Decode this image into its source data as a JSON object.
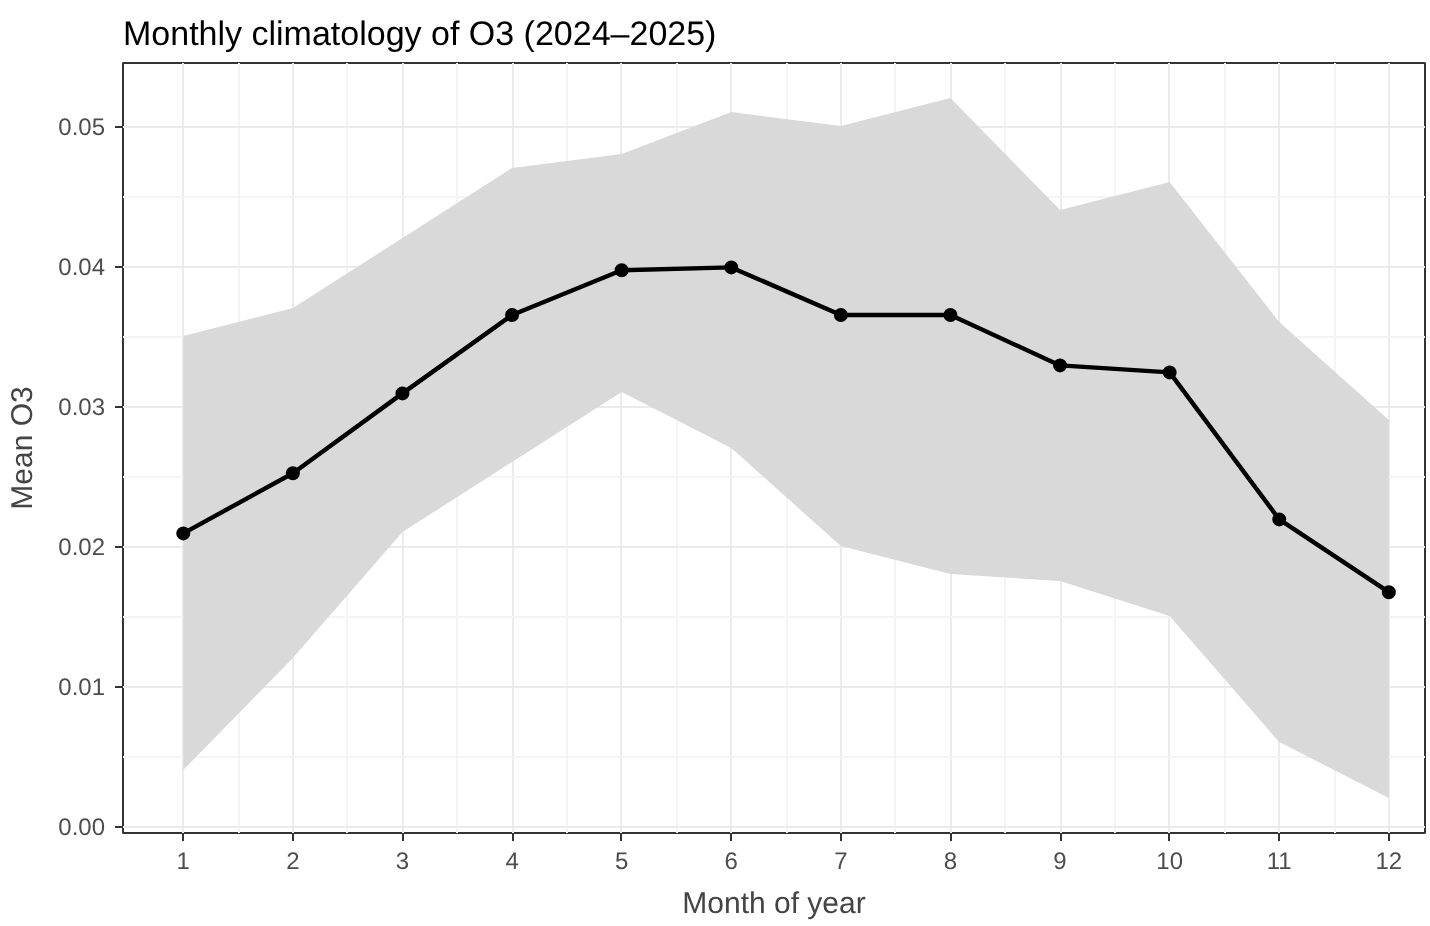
{
  "chart_data": {
    "type": "line",
    "title": "Monthly climatology of O3 (2024–2025)",
    "xlabel": "Month of year",
    "ylabel": "Mean O3",
    "x": [
      1,
      2,
      3,
      4,
      5,
      6,
      7,
      8,
      9,
      10,
      11,
      12
    ],
    "series": [
      {
        "color": "#000000",
        "values": [
          0.0209,
          0.0252,
          0.0309,
          0.0365,
          0.0397,
          0.0399,
          0.0365,
          0.0365,
          0.0329,
          0.0324,
          0.0219,
          0.0167
        ],
        "lower": [
          0.004,
          0.012,
          0.021,
          0.026,
          0.031,
          0.027,
          0.02,
          0.018,
          0.0175,
          0.015,
          0.006,
          0.002
        ],
        "upper": [
          0.035,
          0.037,
          0.042,
          0.047,
          0.048,
          0.051,
          0.05,
          0.052,
          0.044,
          0.046,
          0.036,
          0.029
        ]
      }
    ],
    "xlim": [
      0.45,
      12.33
    ],
    "ylim": [
      -0.0005,
      0.0545
    ],
    "xticks": [
      1,
      2,
      3,
      4,
      5,
      6,
      7,
      8,
      9,
      10,
      11,
      12
    ],
    "yticks": [
      {
        "value": 0,
        "label": "0.00"
      },
      {
        "value": 0.01,
        "label": "0.01"
      },
      {
        "value": 0.02,
        "label": "0.02"
      },
      {
        "value": 0.03,
        "label": "0.03"
      },
      {
        "value": 0.04,
        "label": "0.04"
      },
      {
        "value": 0.05,
        "label": "0.05"
      }
    ],
    "grid": true,
    "marker": "circle",
    "line_style": "solid"
  }
}
